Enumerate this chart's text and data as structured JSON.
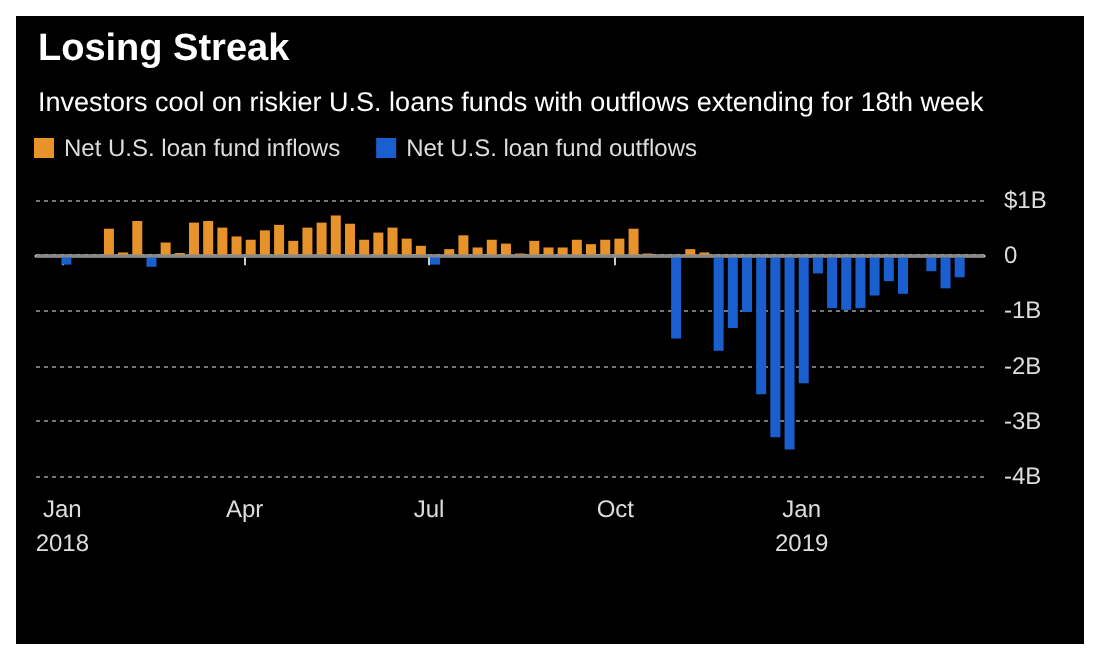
{
  "chart_data": {
    "type": "bar",
    "title": "Losing Streak",
    "subtitle": "Investors cool on riskier U.S. loans funds with outflows extending for 18th week",
    "x": [
      "2018-01-03",
      "2018-01-10",
      "2018-01-17",
      "2018-01-24",
      "2018-01-31",
      "2018-02-07",
      "2018-02-14",
      "2018-02-21",
      "2018-02-28",
      "2018-03-07",
      "2018-03-14",
      "2018-03-21",
      "2018-03-28",
      "2018-04-04",
      "2018-04-11",
      "2018-04-18",
      "2018-04-25",
      "2018-05-02",
      "2018-05-09",
      "2018-05-16",
      "2018-05-23",
      "2018-05-30",
      "2018-06-06",
      "2018-06-13",
      "2018-06-20",
      "2018-06-27",
      "2018-07-04",
      "2018-07-11",
      "2018-07-18",
      "2018-07-25",
      "2018-08-01",
      "2018-08-08",
      "2018-08-15",
      "2018-08-22",
      "2018-08-29",
      "2018-09-05",
      "2018-09-12",
      "2018-09-19",
      "2018-09-26",
      "2018-10-03",
      "2018-10-10",
      "2018-10-17",
      "2018-10-24",
      "2018-10-31",
      "2018-11-07",
      "2018-11-14",
      "2018-11-21",
      "2018-11-28",
      "2018-12-05",
      "2018-12-12",
      "2018-12-19",
      "2018-12-26",
      "2019-01-02",
      "2019-01-09",
      "2019-01-16",
      "2019-01-23",
      "2019-01-30",
      "2019-02-06",
      "2019-02-13",
      "2019-02-20",
      "2019-02-27",
      "2019-03-06",
      "2019-03-13",
      "2019-03-20"
    ],
    "series": [
      {
        "name": "Net U.S. loan fund inflows",
        "color": "#e8922a",
        "values": [
          null,
          null,
          null,
          0.48,
          0.05,
          0.62,
          null,
          0.23,
          0.04,
          0.59,
          0.62,
          0.5,
          0.34,
          0.28,
          0.45,
          0.55,
          0.26,
          0.5,
          0.59,
          0.72,
          0.57,
          0.28,
          0.41,
          0.5,
          0.3,
          0.17,
          null,
          0.11,
          0.36,
          0.14,
          0.28,
          0.21,
          0.03,
          0.26,
          0.14,
          0.14,
          0.28,
          0.2,
          0.28,
          0.3,
          0.48,
          0.03,
          null,
          null,
          0.11,
          0.05,
          null,
          null,
          null,
          null,
          null,
          null,
          null,
          null,
          null,
          null,
          null,
          null,
          null,
          null,
          null,
          null,
          null,
          null
        ]
      },
      {
        "name": "Net U.S. loan fund outflows",
        "color": "#1a5fd0",
        "values": [
          -0.17,
          null,
          -0.03,
          null,
          null,
          null,
          -0.21,
          null,
          null,
          null,
          null,
          null,
          null,
          null,
          null,
          null,
          null,
          null,
          null,
          null,
          null,
          null,
          null,
          null,
          null,
          null,
          -0.17,
          null,
          null,
          null,
          null,
          null,
          null,
          null,
          null,
          null,
          null,
          null,
          null,
          null,
          null,
          null,
          null,
          -1.51,
          null,
          null,
          -1.73,
          -1.32,
          -1.03,
          -2.52,
          -3.3,
          -3.52,
          -2.32,
          -0.33,
          -0.96,
          -0.99,
          -0.96,
          -0.73,
          -0.47,
          -0.7,
          null,
          -0.29,
          -0.6,
          -0.4
        ]
      }
    ],
    "xlim": [
      "2017-12-19",
      "2019-04-01"
    ],
    "xticks": [
      {
        "value": "2018-01-01",
        "label": "Jan\n2018"
      },
      {
        "value": "2018-04-01",
        "label": "Apr"
      },
      {
        "value": "2018-07-01",
        "label": "Jul"
      },
      {
        "value": "2018-10-01",
        "label": "Oct"
      },
      {
        "value": "2019-01-01",
        "label": "Jan\n2019"
      }
    ],
    "ylim": [
      -4,
      1
    ],
    "yticks": [
      {
        "value": 1,
        "label": "$1B"
      },
      0,
      {
        "value": -1,
        "label": "-1B"
      },
      {
        "value": -2,
        "label": "-2B"
      },
      {
        "value": -3,
        "label": "-3B"
      },
      {
        "value": -4,
        "label": "-4B"
      }
    ],
    "ref_lines": [
      {
        "axis": "y",
        "value": 0,
        "color": "#888888"
      }
    ],
    "grid": "y",
    "legend": "top left"
  }
}
